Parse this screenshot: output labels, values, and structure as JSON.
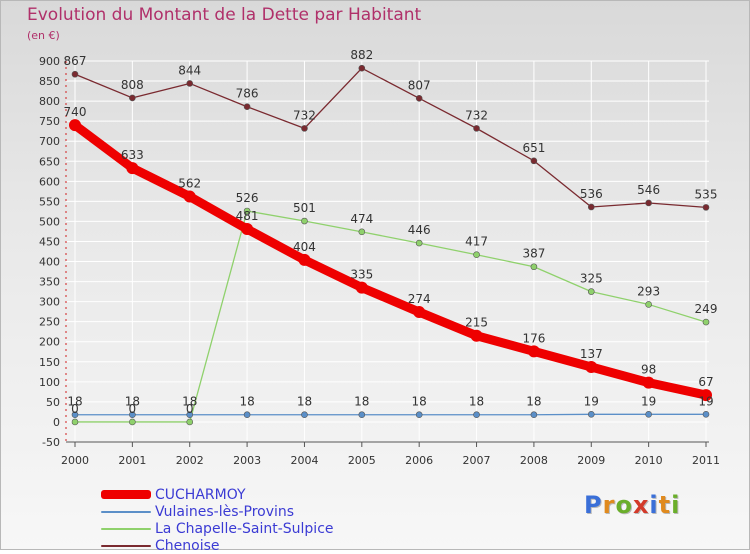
{
  "title": "Evolution du Montant de la Dette par Habitant",
  "subtitle": "(en €)",
  "brand": "Proxiti",
  "colors": {
    "title": "#b0306a",
    "legend_text": "#3b3bd4",
    "grid": "#ffffff",
    "axis": "#555555"
  },
  "chart_data": {
    "type": "line",
    "x": [
      "2000",
      "2001",
      "2002",
      "2003",
      "2004",
      "2005",
      "2006",
      "2007",
      "2008",
      "2009",
      "2010",
      "2011"
    ],
    "ylim": [
      -50,
      900
    ],
    "yticks": [
      -50,
      0,
      50,
      100,
      150,
      200,
      250,
      300,
      350,
      400,
      450,
      500,
      550,
      600,
      650,
      700,
      750,
      800,
      850,
      900
    ],
    "grid": true,
    "legend_position": "bottom-left",
    "series": [
      {
        "name": "CUCHARMOY",
        "color": "#ee0000",
        "values": [
          740,
          633,
          562,
          481,
          404,
          335,
          274,
          215,
          176,
          137,
          98,
          67
        ],
        "labels": [
          "740",
          "633",
          "562",
          "481",
          "404",
          "335",
          "274",
          "215",
          "176",
          "137",
          "98",
          "67"
        ],
        "bold": true
      },
      {
        "name": "Vulaines-lès-Provins",
        "color": "#5b8fc8",
        "values": [
          18,
          18,
          18,
          18,
          18,
          18,
          18,
          18,
          18,
          19,
          19,
          19
        ],
        "labels": [
          "18",
          "18",
          "18",
          "18",
          "18",
          "18",
          "18",
          "18",
          "18",
          "19",
          "19",
          "19"
        ],
        "bold": false
      },
      {
        "name": "La Chapelle-Saint-Sulpice",
        "color": "#8fd16c",
        "values": [
          0,
          0,
          0,
          526,
          501,
          474,
          446,
          417,
          387,
          325,
          293,
          249
        ],
        "labels": [
          "0",
          "0",
          "0",
          "526",
          "501",
          "474",
          "446",
          "417",
          "387",
          "325",
          "293",
          "249"
        ],
        "bold": false
      },
      {
        "name": "Chenoise",
        "color": "#7a2a30",
        "values": [
          867,
          808,
          844,
          786,
          732,
          882,
          807,
          732,
          651,
          536,
          546,
          535
        ],
        "labels": [
          "867",
          "808",
          "844",
          "786",
          "732",
          "882",
          "807",
          "732",
          "651",
          "536",
          "546",
          "535"
        ],
        "bold": false
      }
    ]
  }
}
